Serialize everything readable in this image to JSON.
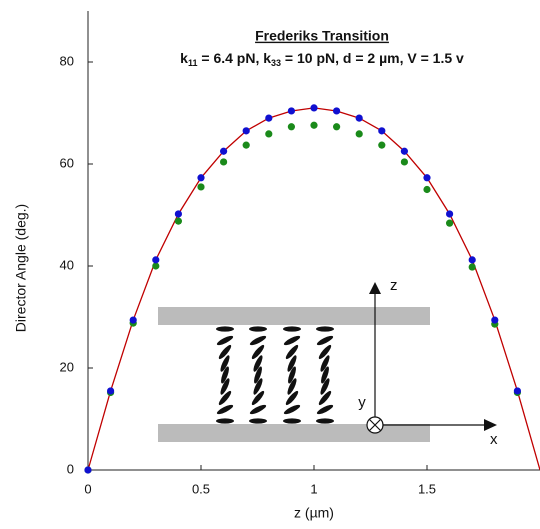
{
  "chart_data": {
    "type": "scatter",
    "title": "Frederiks Transition",
    "subtitle": [
      "k",
      "11",
      " = 6.4 pN, k",
      "33",
      " = 10 pN, d = 2 µm, V = 1.5 v"
    ],
    "x_label": "z  (µm)",
    "y_label": "Director Angle  (deg.)",
    "annotations": [
      "z",
      "y",
      "x"
    ],
    "xlim": [
      0,
      2
    ],
    "ylim": [
      0,
      90
    ],
    "xticks": [
      0,
      0.5,
      1,
      1.5
    ],
    "yticks": [
      0,
      20,
      40,
      60,
      80
    ],
    "curve": {
      "color": "#c00000",
      "x": [
        0,
        0.1,
        0.2,
        0.3,
        0.4,
        0.5,
        0.6,
        0.7,
        0.8,
        0.9,
        1.0,
        1.1,
        1.2,
        1.3,
        1.4,
        1.5,
        1.6,
        1.7,
        1.8,
        1.9,
        2.0
      ],
      "values": [
        0,
        15.5,
        29.4,
        41.2,
        50.2,
        57.3,
        62.5,
        66.5,
        69,
        70.4,
        71,
        70.4,
        69,
        66.5,
        62.5,
        57.3,
        50.2,
        41.2,
        29.4,
        15.5,
        0
      ]
    },
    "x": [
      0,
      0.1,
      0.2,
      0.3,
      0.4,
      0.5,
      0.6,
      0.7,
      0.8,
      0.9,
      1.0,
      1.1,
      1.2,
      1.3,
      1.4,
      1.5,
      1.6,
      1.7,
      1.8,
      1.9
    ],
    "series": [
      {
        "color": "#1a8a1a",
        "values": [
          0,
          15.2,
          28.8,
          40,
          48.8,
          55.5,
          60.4,
          63.7,
          65.9,
          67.3,
          67.6,
          67.3,
          65.9,
          63.7,
          60.4,
          55,
          48.4,
          39.8,
          28.6,
          15.2
        ]
      },
      {
        "color": "#1010d0",
        "values": [
          0,
          15.5,
          29.4,
          41.2,
          50.2,
          57.3,
          62.5,
          66.5,
          69,
          70.4,
          71,
          70.4,
          69,
          66.5,
          62.5,
          57.3,
          50.2,
          41.2,
          29.4,
          15.5
        ]
      }
    ]
  }
}
